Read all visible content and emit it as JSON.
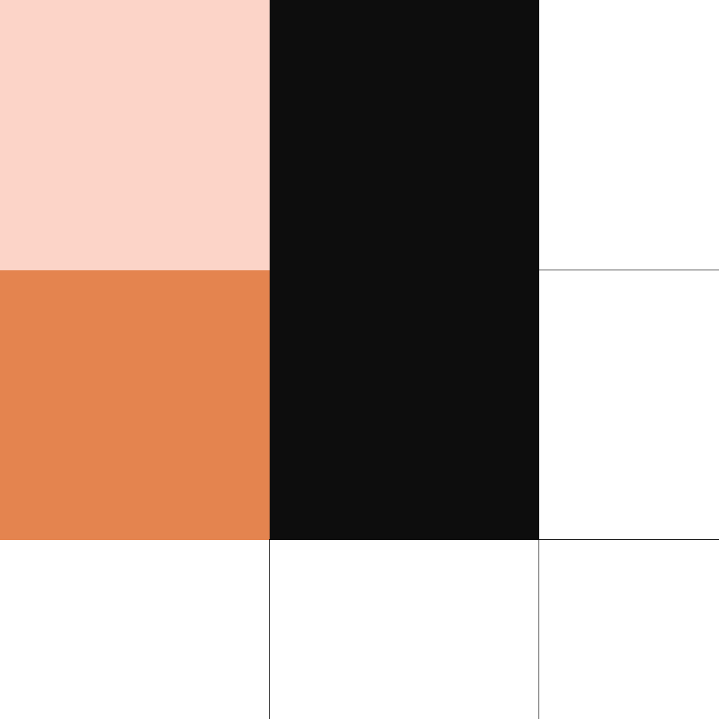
{
  "grid": {
    "rows": 3,
    "columns": 3,
    "colors": {
      "peach": "#fcd4c8",
      "orange": "#e4844f",
      "black": "#0d0d0d",
      "white": "#ffffff",
      "line": "#111111"
    },
    "cells": [
      {
        "name": "cell-r1-c1",
        "color": "#fcd4c8"
      },
      {
        "name": "cell-r1-c3",
        "color": "#ffffff"
      },
      {
        "name": "cell-r2-c1",
        "color": "#e4844f"
      },
      {
        "name": "cell-r2-c3",
        "color": "#ffffff"
      },
      {
        "name": "cell-r3-c1",
        "color": "#ffffff"
      },
      {
        "name": "cell-r3-c2",
        "color": "#ffffff"
      },
      {
        "name": "cell-r3-c3",
        "color": "#ffffff"
      }
    ],
    "merged_block": {
      "name": "black-block-c2-r1-r2",
      "color": "#0d0d0d"
    }
  }
}
